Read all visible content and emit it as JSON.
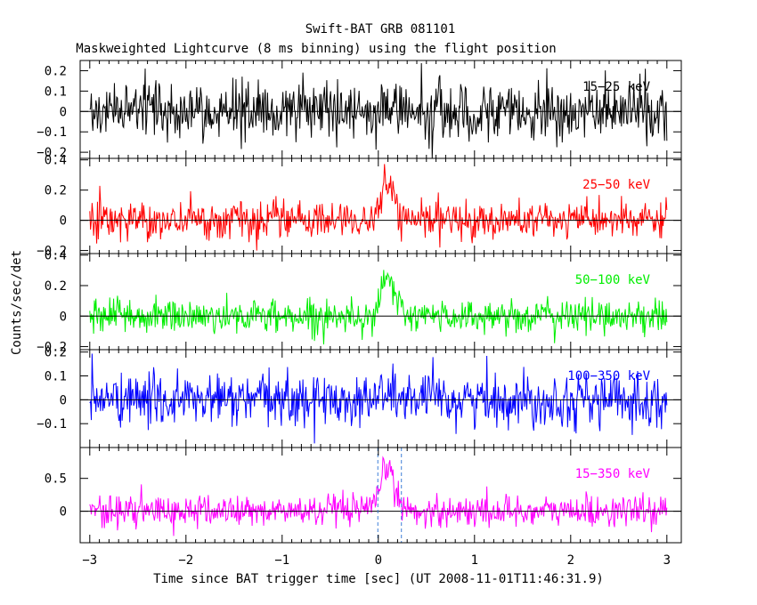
{
  "chart_data": {
    "type": "line",
    "title": "Swift-BAT GRB 081101",
    "subtitle": "Maskweighted Lightcurve (8 ms binning) using the flight position",
    "xlabel": "Time since BAT trigger time [sec] (UT 2008-11-01T11:46:31.9)",
    "ylabel": "Counts/sec/det",
    "xlim": [
      -3.1,
      3.15
    ],
    "xticks": [
      -3,
      -2,
      -1,
      0,
      1,
      2,
      3
    ],
    "xtick_labels": [
      "−3",
      "−2",
      "−1",
      "0",
      "1",
      "2",
      "3"
    ],
    "bin_width_sec": 0.008,
    "data_range": [
      -3.0,
      3.0
    ],
    "t90_markers": [
      -0.005,
      0.24
    ],
    "panels": [
      {
        "name": "15-25 keV",
        "label": "15−25 keV",
        "color": "#000000",
        "ylim": [
          -0.23,
          0.25
        ],
        "yticks": [
          -0.2,
          -0.1,
          0,
          0.1,
          0.2
        ],
        "ytick_labels": [
          "−0.2",
          "−0.1",
          "0",
          "0.1",
          "0.2"
        ],
        "noise_sigma": 0.07,
        "peak_amplitude": 0.03,
        "peak_time": 0.1,
        "peak_width": 0.08
      },
      {
        "name": "25-50 keV",
        "label": "25−50 keV",
        "color": "#ff0000",
        "ylim": [
          -0.22,
          0.41
        ],
        "yticks": [
          -0.2,
          0,
          0.2,
          0.4
        ],
        "ytick_labels": [
          "−0.2",
          "0",
          "0.2",
          "0.4"
        ],
        "noise_sigma": 0.06,
        "peak_amplitude": 0.22,
        "peak_time": 0.1,
        "peak_width": 0.07
      },
      {
        "name": "50-100 keV",
        "label": "50−100 keV",
        "color": "#00ee00",
        "ylim": [
          -0.22,
          0.41
        ],
        "yticks": [
          -0.2,
          0,
          0.2,
          0.4
        ],
        "ytick_labels": [
          "−0.2",
          "0",
          "0.2",
          "0.4"
        ],
        "noise_sigma": 0.055,
        "peak_amplitude": 0.24,
        "peak_time": 0.1,
        "peak_width": 0.07
      },
      {
        "name": "100-350 keV",
        "label": "100−350 keV",
        "color": "#0000ff",
        "ylim": [
          -0.2,
          0.21
        ],
        "yticks": [
          -0.1,
          0,
          0.1,
          0.2
        ],
        "ytick_labels": [
          "−0.1",
          "0",
          "0.1",
          "0.2"
        ],
        "noise_sigma": 0.055,
        "peak_amplitude": 0.03,
        "peak_time": 0.1,
        "peak_width": 0.08
      },
      {
        "name": "15-350 keV",
        "label": "15−350 keV",
        "color": "#ff00ff",
        "ylim": [
          -0.48,
          0.97
        ],
        "yticks": [
          0,
          0.5
        ],
        "ytick_labels": [
          "0",
          "0.5"
        ],
        "noise_sigma": 0.12,
        "peak_amplitude": 0.68,
        "peak_time": 0.1,
        "peak_width": 0.07
      }
    ]
  }
}
